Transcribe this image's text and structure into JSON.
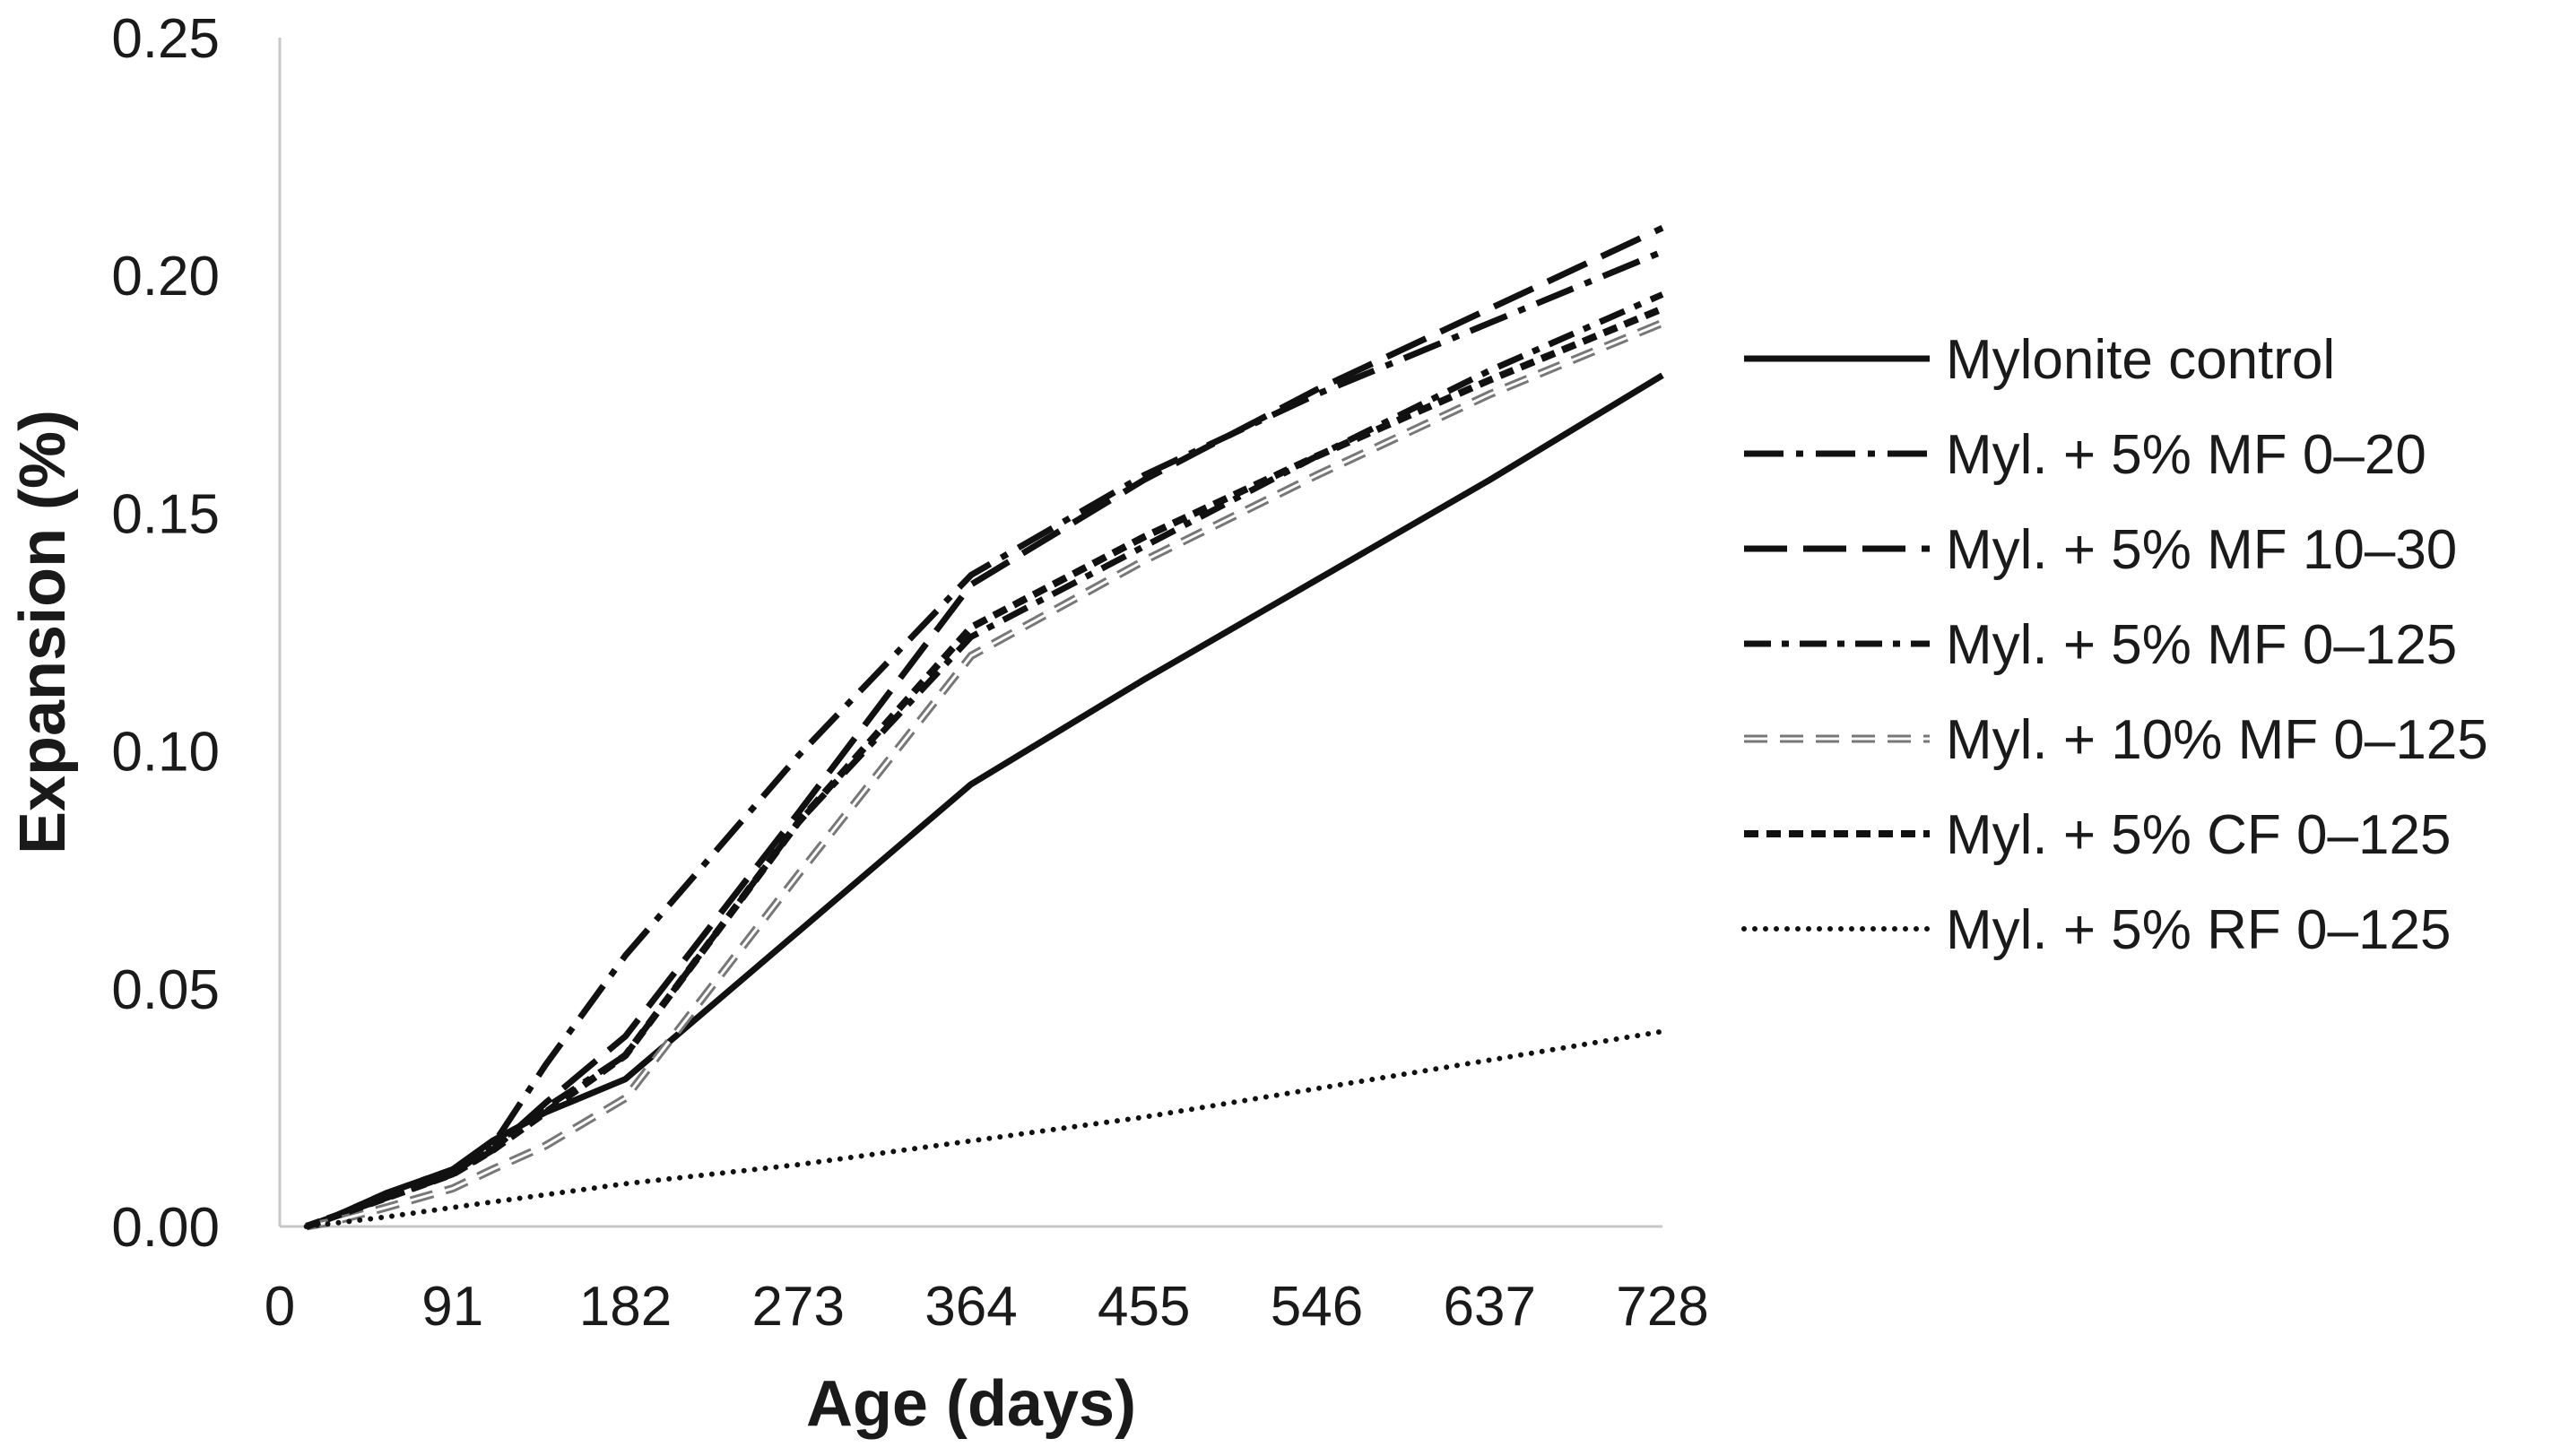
{
  "chart_data": {
    "type": "line",
    "title": "",
    "xlabel": "Age (days)",
    "ylabel": "Expansion (%)",
    "xlim": [
      0,
      728
    ],
    "ylim": [
      0,
      0.25
    ],
    "x_ticks": [
      "0",
      "91",
      "182",
      "273",
      "364",
      "455",
      "546",
      "637",
      "728"
    ],
    "y_ticks": [
      "0.00",
      "0.05",
      "0.10",
      "0.15",
      "0.20",
      "0.25"
    ],
    "grid": false,
    "legend_position": "right",
    "series": [
      {
        "name": "Mylonite control",
        "style": "solid",
        "color": "#111111",
        "points": [
          [
            14,
            0
          ],
          [
            28,
            0.002
          ],
          [
            56,
            0.007
          ],
          [
            91,
            0.012
          ],
          [
            112,
            0.018
          ],
          [
            140,
            0.024
          ],
          [
            182,
            0.031
          ],
          [
            273,
            0.062
          ],
          [
            364,
            0.093
          ],
          [
            455,
            0.115
          ],
          [
            546,
            0.136
          ],
          [
            637,
            0.157
          ],
          [
            728,
            0.179
          ]
        ]
      },
      {
        "name": "Myl. + 5% MF 0–20",
        "style": "dash-dot",
        "color": "#111111",
        "points": [
          [
            14,
            0
          ],
          [
            28,
            0.002
          ],
          [
            56,
            0.007
          ],
          [
            91,
            0.012
          ],
          [
            112,
            0.017
          ],
          [
            140,
            0.034
          ],
          [
            182,
            0.057
          ],
          [
            273,
            0.099
          ],
          [
            364,
            0.137
          ],
          [
            455,
            0.158
          ],
          [
            546,
            0.175
          ],
          [
            637,
            0.19
          ],
          [
            728,
            0.205
          ]
        ]
      },
      {
        "name": "Myl. + 5% MF 10–30",
        "style": "long-dash",
        "color": "#111111",
        "points": [
          [
            14,
            0
          ],
          [
            28,
            0.002
          ],
          [
            56,
            0.006
          ],
          [
            91,
            0.011
          ],
          [
            112,
            0.016
          ],
          [
            140,
            0.026
          ],
          [
            182,
            0.04
          ],
          [
            273,
            0.087
          ],
          [
            364,
            0.135
          ],
          [
            455,
            0.157
          ],
          [
            546,
            0.176
          ],
          [
            637,
            0.193
          ],
          [
            728,
            0.21
          ]
        ]
      },
      {
        "name": "Myl. + 5% MF 0–125",
        "style": "dash-dot-long",
        "color": "#111111",
        "points": [
          [
            14,
            0
          ],
          [
            28,
            0.002
          ],
          [
            56,
            0.006
          ],
          [
            91,
            0.011
          ],
          [
            112,
            0.017
          ],
          [
            140,
            0.025
          ],
          [
            182,
            0.036
          ],
          [
            273,
            0.085
          ],
          [
            364,
            0.124
          ],
          [
            455,
            0.143
          ],
          [
            546,
            0.162
          ],
          [
            637,
            0.18
          ],
          [
            728,
            0.196
          ]
        ]
      },
      {
        "name": "Myl. + 10% MF 0–125",
        "style": "double-dash",
        "color": "#777777",
        "points": [
          [
            14,
            0
          ],
          [
            28,
            0.001
          ],
          [
            56,
            0.004
          ],
          [
            91,
            0.008
          ],
          [
            112,
            0.012
          ],
          [
            140,
            0.017
          ],
          [
            182,
            0.027
          ],
          [
            273,
            0.074
          ],
          [
            364,
            0.12
          ],
          [
            455,
            0.14
          ],
          [
            546,
            0.158
          ],
          [
            637,
            0.175
          ],
          [
            728,
            0.19
          ]
        ]
      },
      {
        "name": "Myl. + 5% CF 0–125",
        "style": "short-dash",
        "color": "#111111",
        "points": [
          [
            14,
            0
          ],
          [
            28,
            0.002
          ],
          [
            56,
            0.006
          ],
          [
            91,
            0.011
          ],
          [
            112,
            0.016
          ],
          [
            140,
            0.024
          ],
          [
            182,
            0.036
          ],
          [
            273,
            0.085
          ],
          [
            364,
            0.126
          ],
          [
            455,
            0.145
          ],
          [
            546,
            0.162
          ],
          [
            637,
            0.178
          ],
          [
            728,
            0.193
          ]
        ]
      },
      {
        "name": "Myl. + 5% RF 0–125",
        "style": "dotted",
        "color": "#111111",
        "points": [
          [
            14,
            0
          ],
          [
            56,
            0.002
          ],
          [
            91,
            0.004
          ],
          [
            182,
            0.009
          ],
          [
            273,
            0.013
          ],
          [
            364,
            0.018
          ],
          [
            455,
            0.023
          ],
          [
            546,
            0.029
          ],
          [
            637,
            0.035
          ],
          [
            728,
            0.041
          ]
        ]
      }
    ]
  }
}
